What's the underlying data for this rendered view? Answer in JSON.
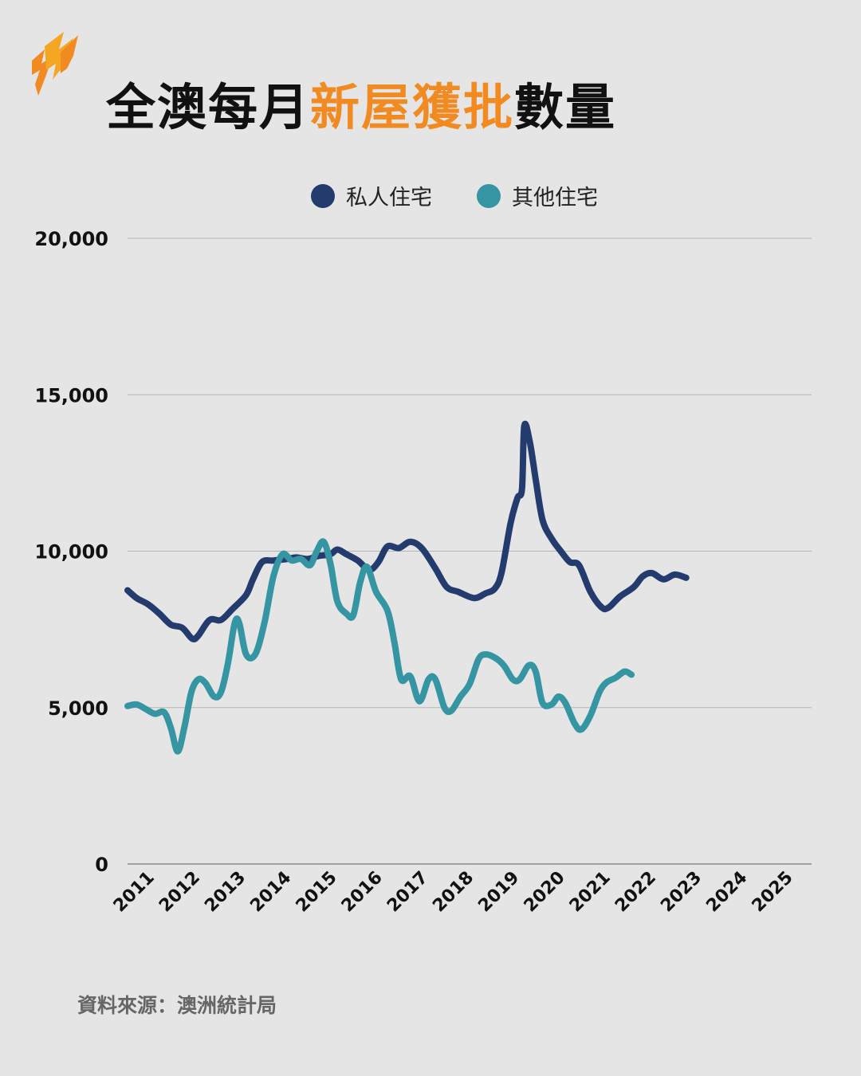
{
  "title": {
    "part1": "全澳每月",
    "highlight": "新屋獲批",
    "part2": "數量"
  },
  "colors": {
    "private": "#243b6e",
    "other": "#3595a2",
    "accent": "#f28a22",
    "grid": "#b5b5b5"
  },
  "logo_icon": "sbs-logo-icon",
  "legend": [
    {
      "name": "私人住宅",
      "color": "#243b6e"
    },
    {
      "name": "其他住宅",
      "color": "#3595a2"
    }
  ],
  "source": "資料來源：澳洲統計局",
  "chart_data": {
    "type": "line",
    "ylim": [
      0,
      20000
    ],
    "yticks": [
      0,
      5000,
      10000,
      15000,
      20000
    ],
    "ytick_labels": [
      "0",
      "5,000",
      "10,000",
      "15,000",
      "20,000"
    ],
    "xlim": [
      2011.0,
      2026.0
    ],
    "xtick_labels": [
      "2011",
      "2012",
      "2013",
      "2014",
      "2015",
      "2016",
      "2017",
      "2018",
      "2019",
      "2020",
      "2021",
      "2022",
      "2023",
      "2024",
      "2025"
    ],
    "grid": true,
    "legend_position": "top",
    "series": [
      {
        "name": "私人住宅",
        "points": [
          [
            2011.0,
            8750
          ],
          [
            2011.2,
            8500
          ],
          [
            2011.45,
            8300
          ],
          [
            2011.7,
            8000
          ],
          [
            2011.95,
            7650
          ],
          [
            2012.2,
            7550
          ],
          [
            2012.42,
            7200
          ],
          [
            2012.55,
            7300
          ],
          [
            2012.8,
            7800
          ],
          [
            2013.05,
            7800
          ],
          [
            2013.3,
            8150
          ],
          [
            2013.6,
            8600
          ],
          [
            2013.75,
            9100
          ],
          [
            2013.95,
            9650
          ],
          [
            2014.2,
            9700
          ],
          [
            2014.5,
            9750
          ],
          [
            2014.7,
            9800
          ],
          [
            2014.95,
            9750
          ],
          [
            2015.2,
            9850
          ],
          [
            2015.45,
            9900
          ],
          [
            2015.6,
            10050
          ],
          [
            2015.8,
            9900
          ],
          [
            2016.05,
            9700
          ],
          [
            2016.3,
            9400
          ],
          [
            2016.5,
            9650
          ],
          [
            2016.7,
            10150
          ],
          [
            2016.95,
            10100
          ],
          [
            2017.2,
            10300
          ],
          [
            2017.45,
            10100
          ],
          [
            2017.75,
            9450
          ],
          [
            2018.0,
            8850
          ],
          [
            2018.25,
            8700
          ],
          [
            2018.6,
            8500
          ],
          [
            2018.85,
            8650
          ],
          [
            2019.05,
            8800
          ],
          [
            2019.2,
            9300
          ],
          [
            2019.4,
            10900
          ],
          [
            2019.55,
            11700
          ],
          [
            2019.65,
            12000
          ],
          [
            2019.7,
            14000
          ],
          [
            2019.82,
            13500
          ],
          [
            2019.95,
            12300
          ],
          [
            2020.1,
            11000
          ],
          [
            2020.3,
            10400
          ],
          [
            2020.5,
            10000
          ],
          [
            2020.7,
            9650
          ],
          [
            2020.9,
            9550
          ],
          [
            2021.15,
            8700
          ],
          [
            2021.4,
            8200
          ],
          [
            2021.55,
            8200
          ],
          [
            2021.8,
            8550
          ],
          [
            2022.1,
            8850
          ],
          [
            2022.3,
            9200
          ],
          [
            2022.5,
            9300
          ],
          [
            2022.75,
            9100
          ],
          [
            2023.0,
            9250
          ],
          [
            2023.25,
            9150
          ]
        ]
      },
      {
        "name": "其他住宅",
        "points": [
          [
            2011.0,
            5050
          ],
          [
            2011.2,
            5100
          ],
          [
            2011.4,
            4950
          ],
          [
            2011.6,
            4800
          ],
          [
            2011.8,
            4850
          ],
          [
            2011.95,
            4350
          ],
          [
            2012.1,
            3600
          ],
          [
            2012.25,
            4400
          ],
          [
            2012.4,
            5500
          ],
          [
            2012.55,
            5900
          ],
          [
            2012.7,
            5800
          ],
          [
            2012.9,
            5350
          ],
          [
            2013.05,
            5500
          ],
          [
            2013.2,
            6400
          ],
          [
            2013.35,
            7700
          ],
          [
            2013.45,
            7700
          ],
          [
            2013.6,
            6700
          ],
          [
            2013.8,
            6700
          ],
          [
            2014.0,
            7700
          ],
          [
            2014.2,
            9200
          ],
          [
            2014.4,
            9900
          ],
          [
            2014.6,
            9700
          ],
          [
            2014.8,
            9750
          ],
          [
            2015.0,
            9550
          ],
          [
            2015.15,
            10000
          ],
          [
            2015.3,
            10300
          ],
          [
            2015.45,
            9600
          ],
          [
            2015.6,
            8400
          ],
          [
            2015.8,
            8000
          ],
          [
            2015.95,
            7950
          ],
          [
            2016.1,
            9000
          ],
          [
            2016.25,
            9500
          ],
          [
            2016.45,
            8700
          ],
          [
            2016.7,
            8100
          ],
          [
            2016.85,
            7100
          ],
          [
            2017.0,
            5900
          ],
          [
            2017.2,
            6000
          ],
          [
            2017.4,
            5200
          ],
          [
            2017.6,
            5900
          ],
          [
            2017.75,
            5900
          ],
          [
            2017.95,
            5000
          ],
          [
            2018.1,
            4900
          ],
          [
            2018.3,
            5350
          ],
          [
            2018.5,
            5750
          ],
          [
            2018.7,
            6550
          ],
          [
            2018.85,
            6700
          ],
          [
            2019.05,
            6600
          ],
          [
            2019.25,
            6350
          ],
          [
            2019.45,
            5900
          ],
          [
            2019.6,
            5900
          ],
          [
            2019.8,
            6350
          ],
          [
            2019.95,
            6150
          ],
          [
            2020.1,
            5150
          ],
          [
            2020.3,
            5100
          ],
          [
            2020.45,
            5350
          ],
          [
            2020.6,
            5150
          ],
          [
            2020.8,
            4500
          ],
          [
            2020.95,
            4300
          ],
          [
            2021.15,
            4750
          ],
          [
            2021.35,
            5500
          ],
          [
            2021.5,
            5800
          ],
          [
            2021.7,
            5950
          ],
          [
            2021.9,
            6150
          ],
          [
            2022.05,
            6050
          ]
        ]
      }
    ]
  }
}
